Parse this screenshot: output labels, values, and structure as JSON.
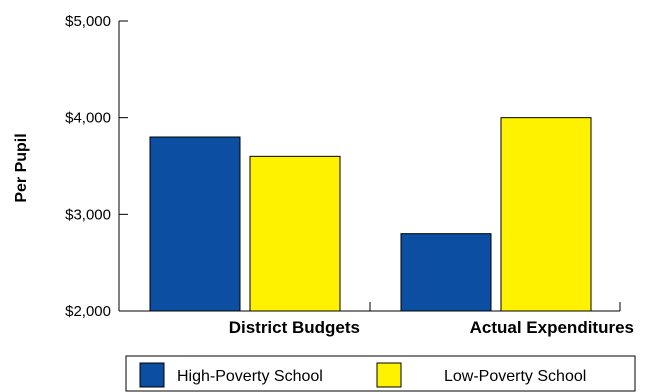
{
  "chart_data": {
    "type": "bar",
    "ylabel": "Per Pupil",
    "xlabel": "",
    "title": "",
    "categories": [
      "District Budgets",
      "Actual Expenditures"
    ],
    "series": [
      {
        "name": "High-Poverty School",
        "values": [
          3800,
          2800
        ],
        "color": "#0b4ea2"
      },
      {
        "name": "Low-Poverty School",
        "values": [
          3600,
          4000
        ],
        "color": "#fff200"
      }
    ],
    "ylim": [
      2000,
      5000
    ],
    "yticks": [
      2000,
      3000,
      4000,
      5000
    ],
    "ytick_labels": [
      "$2,000",
      "$3,000",
      "$4,000",
      "$5,000"
    ],
    "grid": false,
    "legend_position": "bottom"
  }
}
